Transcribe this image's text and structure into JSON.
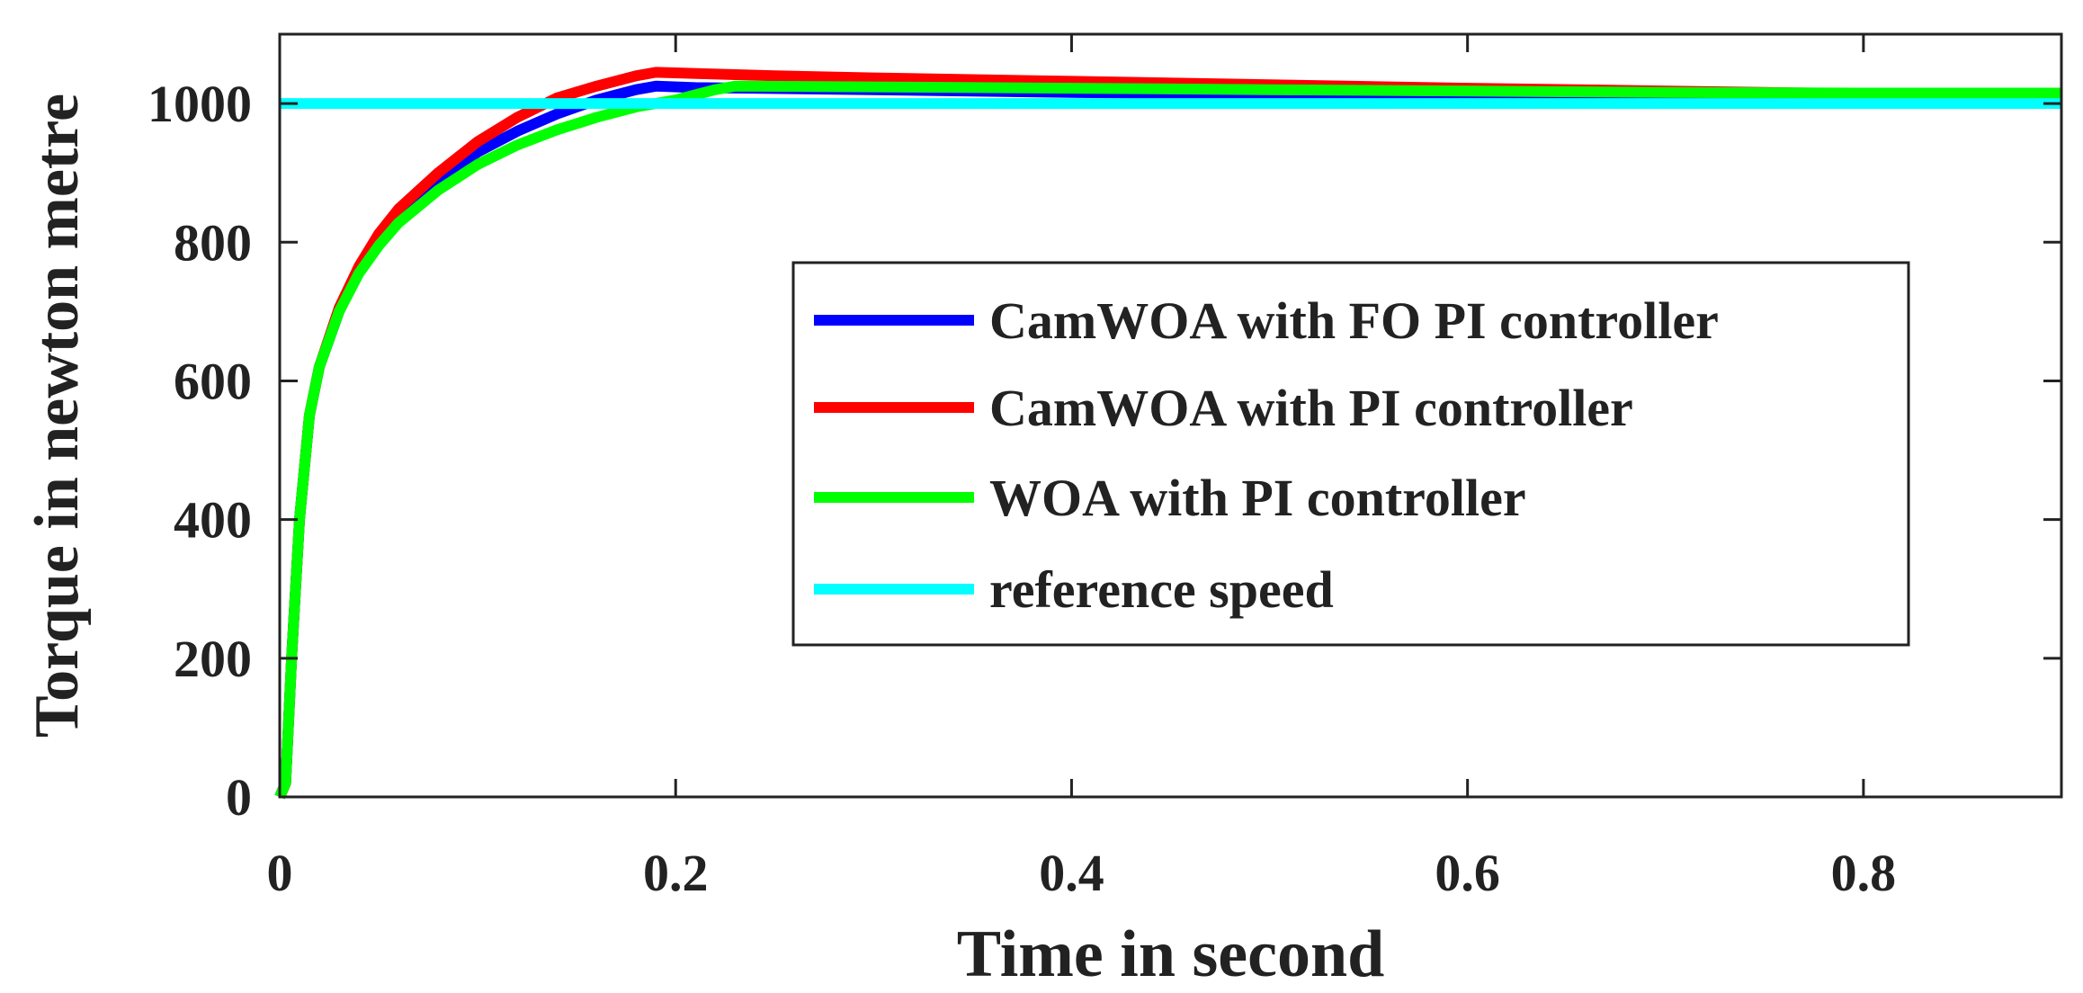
{
  "chart_data": {
    "type": "line",
    "title": "",
    "xlabel": "Time in second",
    "ylabel": "Torque in newton metre",
    "xlim": [
      0,
      0.9
    ],
    "ylim": [
      0,
      1100
    ],
    "xticks": [
      0,
      0.2,
      0.4,
      0.6,
      0.8
    ],
    "xtick_labels": [
      "0",
      "0.2",
      "0.4",
      "0.6",
      "0.8"
    ],
    "yticks": [
      0,
      200,
      400,
      600,
      800,
      1000
    ],
    "ytick_labels": [
      "0",
      "200",
      "400",
      "600",
      "800",
      "1000"
    ],
    "grid": false,
    "legend_position": "center-right",
    "series": [
      {
        "name": "CamWOA with FO PI controller",
        "color": "#0000ff",
        "x": [
          0,
          0.003,
          0.006,
          0.01,
          0.015,
          0.02,
          0.03,
          0.04,
          0.05,
          0.06,
          0.08,
          0.1,
          0.12,
          0.14,
          0.16,
          0.18,
          0.19,
          0.21,
          0.3,
          0.4,
          0.5,
          0.6,
          0.7,
          0.8,
          0.9
        ],
        "y": [
          0,
          20,
          200,
          400,
          550,
          620,
          700,
          760,
          805,
          840,
          890,
          930,
          960,
          985,
          1005,
          1020,
          1025,
          1023,
          1020,
          1016,
          1013,
          1011,
          1010,
          1010,
          1010
        ]
      },
      {
        "name": "CamWOA with PI controller",
        "color": "#ff0000",
        "x": [
          0,
          0.003,
          0.006,
          0.01,
          0.015,
          0.02,
          0.03,
          0.04,
          0.05,
          0.06,
          0.08,
          0.1,
          0.12,
          0.14,
          0.16,
          0.18,
          0.19,
          0.25,
          0.3,
          0.4,
          0.5,
          0.6,
          0.7,
          0.8,
          0.9
        ],
        "y": [
          0,
          20,
          200,
          400,
          550,
          620,
          705,
          765,
          812,
          848,
          900,
          945,
          980,
          1008,
          1025,
          1040,
          1045,
          1040,
          1037,
          1032,
          1027,
          1022,
          1018,
          1014,
          1012
        ]
      },
      {
        "name": "WOA with PI controller",
        "color": "#00ff00",
        "x": [
          0,
          0.003,
          0.006,
          0.01,
          0.015,
          0.02,
          0.03,
          0.04,
          0.05,
          0.06,
          0.08,
          0.1,
          0.12,
          0.14,
          0.16,
          0.18,
          0.2,
          0.22,
          0.23,
          0.3,
          0.4,
          0.5,
          0.6,
          0.7,
          0.8,
          0.9
        ],
        "y": [
          0,
          20,
          200,
          400,
          550,
          620,
          700,
          755,
          795,
          828,
          875,
          912,
          940,
          962,
          980,
          995,
          1005,
          1020,
          1025,
          1024,
          1022,
          1020,
          1018,
          1016,
          1015,
          1015
        ]
      },
      {
        "name": "reference speed",
        "color": "#00ffff",
        "x": [
          0,
          0.9
        ],
        "y": [
          1000,
          1000
        ]
      }
    ]
  }
}
